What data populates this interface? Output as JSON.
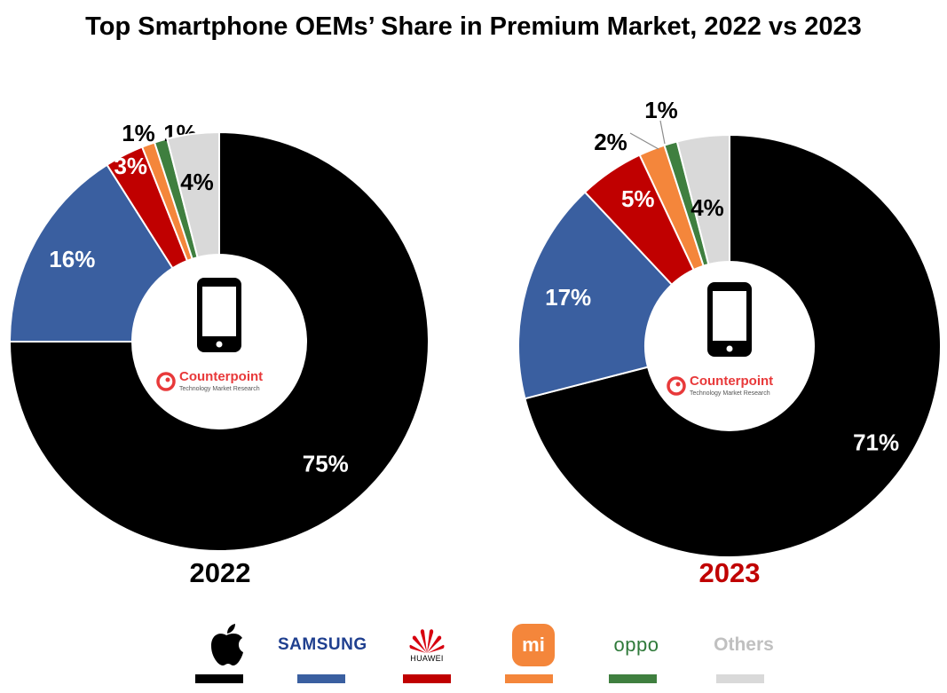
{
  "title": "Top Smartphone OEMs’ Share in Premium Market, 2022 vs 2023",
  "chart_data": [
    {
      "type": "pie",
      "donut": true,
      "year_label": "2022",
      "labels": [
        "Apple",
        "Samsung",
        "Huawei",
        "Xiaomi",
        "OPPO",
        "Others"
      ],
      "values": [
        75,
        16,
        3,
        1,
        1,
        4
      ],
      "data_labels": [
        "75%",
        "16%",
        "3%",
        "1%",
        "1%",
        "4%"
      ],
      "colors": [
        "#000000",
        "#3a5fa0",
        "#c00000",
        "#f4863b",
        "#3f7f3f",
        "#d9d9d9"
      ],
      "center_brand": "Counterpoint",
      "center_tagline": "Technology Market Research"
    },
    {
      "type": "pie",
      "donut": true,
      "year_label": "2023",
      "labels": [
        "Apple",
        "Samsung",
        "Huawei",
        "Xiaomi",
        "OPPO",
        "Others"
      ],
      "values": [
        71,
        17,
        5,
        2,
        1,
        4
      ],
      "data_labels": [
        "71%",
        "17%",
        "5%",
        "2%",
        "1%",
        "4%"
      ],
      "colors": [
        "#000000",
        "#3a5fa0",
        "#c00000",
        "#f4863b",
        "#3f7f3f",
        "#d9d9d9"
      ],
      "center_brand": "Counterpoint",
      "center_tagline": "Technology Market Research"
    }
  ],
  "year_colors": [
    "#000000",
    "#c00000"
  ],
  "legend": [
    {
      "icon": "apple-logo-icon",
      "color": "#000000"
    },
    {
      "text": "SAMSUNG",
      "color": "#3a5fa0"
    },
    {
      "icon": "huawei-logo-icon",
      "text": "HUAWEI",
      "color": "#c00000"
    },
    {
      "icon": "xiaomi-logo-icon",
      "text": "mi",
      "color": "#f4863b"
    },
    {
      "text": "oppo",
      "color": "#3f7f3f"
    },
    {
      "text": "Others",
      "color": "#d9d9d9"
    }
  ]
}
